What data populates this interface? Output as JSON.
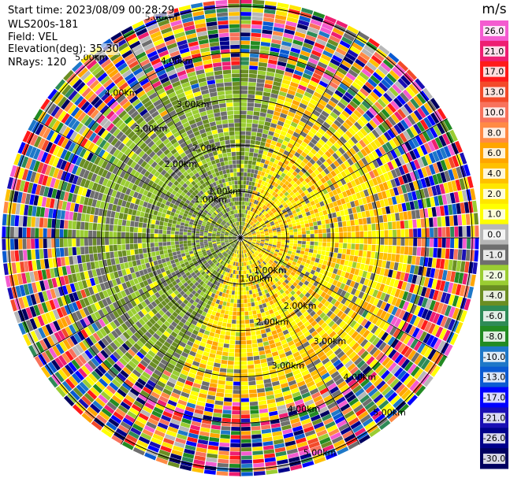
{
  "header": {
    "start_time": "Start time: 2023/08/09 00:28:29",
    "instrument": "WLS200s-181",
    "field": "Field: VEL",
    "elevation": "Elevation(deg): 35.30",
    "nrays": "NRays: 120"
  },
  "colorbar": {
    "unit": "m/s",
    "ticks": [
      "26.0",
      "21.0",
      "17.0",
      "13.0",
      "10.0",
      "8.0",
      "6.0",
      "4.0",
      "2.0",
      "1.0",
      "0.0",
      "-1.0",
      "-2.0",
      "-4.0",
      "-6.0",
      "-8.0",
      "-10.0",
      "-13.0",
      "-17.0",
      "-21.0",
      "-26.0",
      "-30.0"
    ],
    "colors": [
      "#f45bd0",
      "#ee1e72",
      "#ff1a1a",
      "#f34a2a",
      "#f8725c",
      "#ff8a45",
      "#ffa500",
      "#ffc000",
      "#ffe600",
      "#ffff00",
      "#b7b7b7",
      "#6e6e6e",
      "#9acd32",
      "#6b8e23",
      "#2e8b57",
      "#228b22",
      "#1e78c8",
      "#0a5ad2",
      "#0000ff",
      "#1a0fb4",
      "#00008b",
      "#000060"
    ]
  },
  "chart_data": {
    "type": "heatmap",
    "title": "",
    "projection": "polar (plan position indicator)",
    "field": "VEL",
    "units": "m/s",
    "elevation_deg": 35.3,
    "n_rays": 120,
    "range_rings_km": [
      1.0,
      2.0,
      3.0,
      4.0,
      5.0
    ],
    "ring_label_text": "km",
    "colorscale_range": [
      -30.0,
      26.0
    ],
    "pattern": {
      "toward_center_north_west_southwest": "negative (green/grey, -1 to -6 m/s)",
      "east_northeast_south_southeast": "positive (yellow/orange, +1 to +8 m/s)",
      "outer_rings": "noisy aliased values, full color range"
    }
  }
}
